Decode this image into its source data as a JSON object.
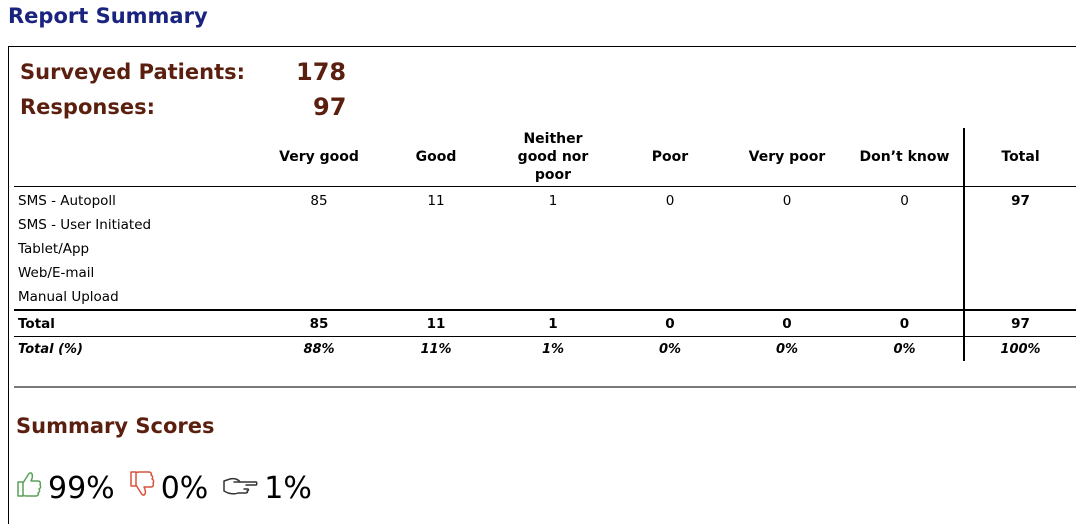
{
  "page": {
    "title": "Report Summary"
  },
  "stats": {
    "surveyed_label": "Surveyed Patients:",
    "surveyed_value": "178",
    "responses_label": "Responses:",
    "responses_value": "97"
  },
  "table": {
    "columns": [
      "Very good",
      "Good",
      "Neither good nor poor",
      "Poor",
      "Very poor",
      "Don’t know",
      "Total"
    ],
    "column_lines": {
      "neither": [
        "Neither",
        "good nor",
        "poor"
      ]
    },
    "rows": [
      {
        "label": "SMS - Autopoll",
        "values": [
          "85",
          "11",
          "1",
          "0",
          "0",
          "0"
        ],
        "total": "97"
      },
      {
        "label": "SMS - User Initiated",
        "values": [
          "",
          "",
          "",
          "",
          "",
          ""
        ],
        "total": ""
      },
      {
        "label": "Tablet/App",
        "values": [
          "",
          "",
          "",
          "",
          "",
          ""
        ],
        "total": ""
      },
      {
        "label": "Web/E-mail",
        "values": [
          "",
          "",
          "",
          "",
          "",
          ""
        ],
        "total": ""
      },
      {
        "label": "Manual Upload",
        "values": [
          "",
          "",
          "",
          "",
          "",
          ""
        ],
        "total": ""
      }
    ],
    "total_row": {
      "label": "Total",
      "values": [
        "85",
        "11",
        "1",
        "0",
        "0",
        "0"
      ],
      "total": "97"
    },
    "pct_row": {
      "label": "Total (%)",
      "values": [
        "88%",
        "11%",
        "1%",
        "0%",
        "0%",
        "0%"
      ],
      "total": "100%"
    }
  },
  "summary": {
    "title": "Summary Scores",
    "scores": [
      {
        "icon": "thumbs-up-icon",
        "value": "99%",
        "color": "#5aa05a"
      },
      {
        "icon": "thumbs-down-icon",
        "value": "0%",
        "color": "#d9533d"
      },
      {
        "icon": "pointing-hand-icon",
        "value": "1%",
        "color": "#333333"
      }
    ]
  }
}
